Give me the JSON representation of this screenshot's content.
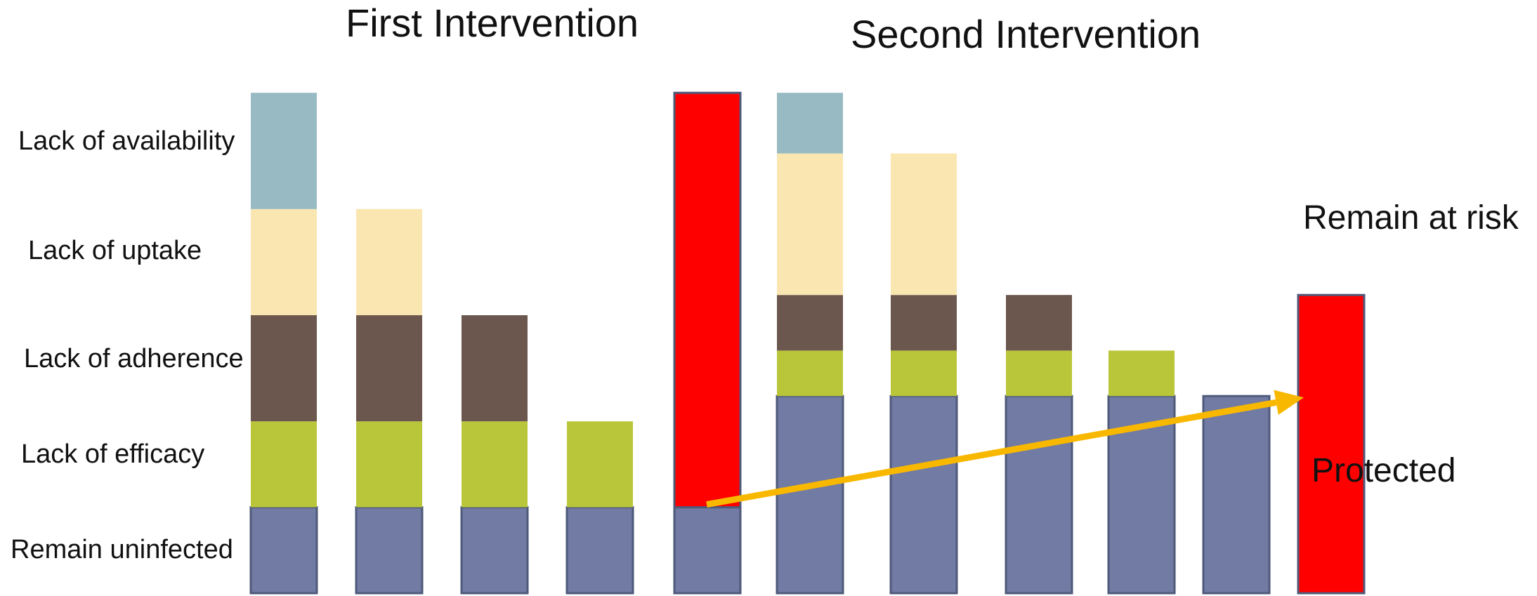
{
  "titles": {
    "first": "First Intervention",
    "second": "Second Intervention"
  },
  "row_labels": {
    "availability": "Lack of availability",
    "uptake": "Lack of uptake",
    "adherence": "Lack of adherence",
    "efficacy": "Lack of efficacy",
    "uninfected": "Remain uninfected"
  },
  "side_labels": {
    "at_risk": "Remain at risk",
    "protected": "Protected"
  },
  "colors": {
    "availability": "#97BAC3",
    "uptake": "#FAE6B0",
    "adherence": "#6B574E",
    "efficacy": "#BAC63A",
    "uninfected": "#717BA3",
    "at_risk": "#FF0000",
    "arrow": "#F9B800",
    "border": "#4E5A7A"
  },
  "chart_data": {
    "type": "bar",
    "stacked": true,
    "categories": [
      "",
      "",
      "",
      "",
      "",
      "",
      "",
      "",
      "",
      "",
      ""
    ],
    "series": [
      {
        "key": "uninfected",
        "values": [
          0.17,
          0.17,
          0.17,
          0.17,
          0.17,
          0.39,
          0.39,
          0.39,
          0.39,
          0.39,
          0.0
        ]
      },
      {
        "key": "efficacy",
        "values": [
          0.17,
          0.17,
          0.17,
          0.17,
          0.0,
          0.09,
          0.09,
          0.09,
          0.09,
          0.0,
          0.0
        ]
      },
      {
        "key": "adherence",
        "values": [
          0.21,
          0.21,
          0.21,
          0.0,
          0.0,
          0.11,
          0.11,
          0.11,
          0.0,
          0.0,
          0.0
        ]
      },
      {
        "key": "uptake",
        "values": [
          0.21,
          0.21,
          0.0,
          0.0,
          0.0,
          0.28,
          0.28,
          0.0,
          0.0,
          0.0,
          0.0
        ]
      },
      {
        "key": "availability",
        "values": [
          0.23,
          0.0,
          0.0,
          0.0,
          0.0,
          0.12,
          0.0,
          0.0,
          0.0,
          0.0,
          0.0
        ]
      },
      {
        "key": "at_risk",
        "values": [
          0.0,
          0.0,
          0.0,
          0.0,
          0.82,
          0.0,
          0.0,
          0.0,
          0.0,
          0.0,
          0.59
        ]
      }
    ],
    "arrow": {
      "from_bar": 4,
      "to_bar": 10,
      "from_level": 0.17,
      "to_level": 0.39
    },
    "ylim": [
      0,
      1.0
    ],
    "grid": false,
    "legend": "none"
  }
}
